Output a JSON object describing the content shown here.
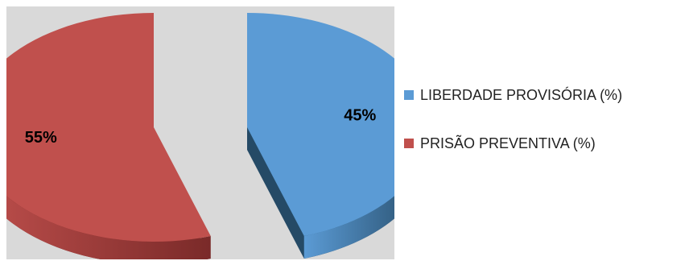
{
  "chart_data": {
    "type": "pie",
    "style": "3d-exploded",
    "categories": [
      "LIBERDADE PROVISÓRIA (%)",
      "PRISÃO PREVENTIVA (%)"
    ],
    "values": [
      45,
      55
    ],
    "data_labels": [
      "45%",
      "55%"
    ],
    "colors": [
      "#5b9bd5",
      "#c0504d"
    ],
    "side_colors": [
      "#254a66",
      "#7a2a29"
    ],
    "plot_background": "#d9d9d9",
    "legend_position": "right"
  }
}
